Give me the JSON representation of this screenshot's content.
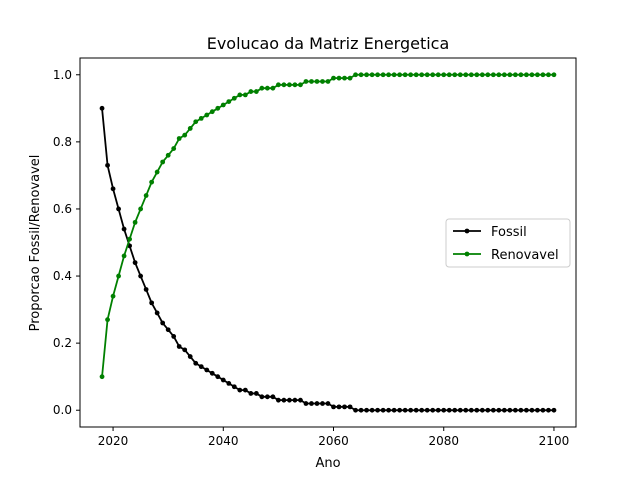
{
  "chart_data": {
    "type": "line",
    "title": "Evolucao da Matriz Energetica",
    "xlabel": "Ano",
    "ylabel": "Proporcao Fossil/Renovavel",
    "xlim": [
      2014,
      2104
    ],
    "ylim": [
      -0.05,
      1.05
    ],
    "xticks": [
      2020,
      2040,
      2060,
      2080,
      2100
    ],
    "xtick_labels": [
      "2020",
      "2040",
      "2060",
      "2080",
      "2100"
    ],
    "yticks": [
      0.0,
      0.2,
      0.4,
      0.6,
      0.8,
      1.0
    ],
    "ytick_labels": [
      "0.0",
      "0.2",
      "0.4",
      "0.6",
      "0.8",
      "1.0"
    ],
    "grid": false,
    "legend_position": "center-right",
    "x": [
      2018,
      2019,
      2020,
      2021,
      2022,
      2023,
      2024,
      2025,
      2026,
      2027,
      2028,
      2029,
      2030,
      2031,
      2032,
      2033,
      2034,
      2035,
      2036,
      2037,
      2038,
      2039,
      2040,
      2041,
      2042,
      2043,
      2044,
      2045,
      2046,
      2047,
      2048,
      2049,
      2050,
      2051,
      2052,
      2053,
      2054,
      2055,
      2056,
      2057,
      2058,
      2059,
      2060,
      2061,
      2062,
      2063,
      2064,
      2065,
      2066,
      2067,
      2068,
      2069,
      2070,
      2071,
      2072,
      2073,
      2074,
      2075,
      2076,
      2077,
      2078,
      2079,
      2080,
      2081,
      2082,
      2083,
      2084,
      2085,
      2086,
      2087,
      2088,
      2089,
      2090,
      2091,
      2092,
      2093,
      2094,
      2095,
      2096,
      2097,
      2098,
      2099,
      2100
    ],
    "series": [
      {
        "name": "Fossil",
        "color": "#000000",
        "values": [
          0.9,
          0.73,
          0.66,
          0.6,
          0.54,
          0.49,
          0.44,
          0.4,
          0.36,
          0.32,
          0.29,
          0.26,
          0.24,
          0.22,
          0.19,
          0.18,
          0.16,
          0.14,
          0.13,
          0.12,
          0.11,
          0.1,
          0.09,
          0.08,
          0.07,
          0.06,
          0.06,
          0.05,
          0.05,
          0.04,
          0.04,
          0.04,
          0.03,
          0.03,
          0.03,
          0.03,
          0.03,
          0.02,
          0.02,
          0.02,
          0.02,
          0.02,
          0.01,
          0.01,
          0.01,
          0.01,
          0.0,
          0.0,
          0.0,
          0.0,
          0.0,
          0.0,
          0.0,
          0.0,
          0.0,
          0.0,
          0.0,
          0.0,
          0.0,
          0.0,
          0.0,
          0.0,
          0.0,
          0.0,
          0.0,
          0.0,
          0.0,
          0.0,
          0.0,
          0.0,
          0.0,
          0.0,
          0.0,
          0.0,
          0.0,
          0.0,
          0.0,
          0.0,
          0.0,
          0.0,
          0.0,
          0.0,
          0.0
        ]
      },
      {
        "name": "Renovavel",
        "color": "#008000",
        "values": [
          0.1,
          0.27,
          0.34,
          0.4,
          0.46,
          0.51,
          0.56,
          0.6,
          0.64,
          0.68,
          0.71,
          0.74,
          0.76,
          0.78,
          0.81,
          0.82,
          0.84,
          0.86,
          0.87,
          0.88,
          0.89,
          0.9,
          0.91,
          0.92,
          0.93,
          0.94,
          0.94,
          0.95,
          0.95,
          0.96,
          0.96,
          0.96,
          0.97,
          0.97,
          0.97,
          0.97,
          0.97,
          0.98,
          0.98,
          0.98,
          0.98,
          0.98,
          0.99,
          0.99,
          0.99,
          0.99,
          1.0,
          1.0,
          1.0,
          1.0,
          1.0,
          1.0,
          1.0,
          1.0,
          1.0,
          1.0,
          1.0,
          1.0,
          1.0,
          1.0,
          1.0,
          1.0,
          1.0,
          1.0,
          1.0,
          1.0,
          1.0,
          1.0,
          1.0,
          1.0,
          1.0,
          1.0,
          1.0,
          1.0,
          1.0,
          1.0,
          1.0,
          1.0,
          1.0,
          1.0,
          1.0,
          1.0,
          1.0
        ]
      }
    ]
  }
}
